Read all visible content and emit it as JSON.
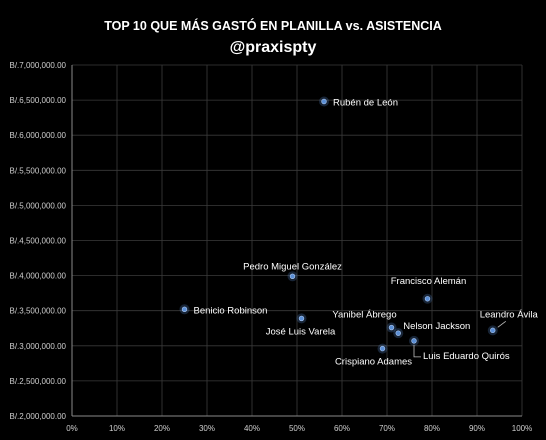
{
  "chart_data": {
    "type": "scatter",
    "title": "TOP 10 QUE MÁS GASTÓ EN PLANILLA vs. ASISTENCIA",
    "subtitle": "@praxispty",
    "xlabel": "",
    "ylabel": "",
    "xlim": [
      0,
      1
    ],
    "ylim": [
      2000000,
      7000000
    ],
    "x_ticks": [
      0,
      0.1,
      0.2,
      0.3,
      0.4,
      0.5,
      0.6,
      0.7,
      0.8,
      0.9,
      1.0
    ],
    "x_tick_labels": [
      "0%",
      "10%",
      "20%",
      "30%",
      "40%",
      "50%",
      "60%",
      "70%",
      "80%",
      "90%",
      "100%"
    ],
    "y_ticks": [
      2000000,
      2500000,
      3000000,
      3500000,
      4000000,
      4500000,
      5000000,
      5500000,
      6000000,
      6500000,
      7000000
    ],
    "y_tick_labels": [
      "B/.2,000,000.00",
      "B/.2,500,000.00",
      "B/.3,000,000.00",
      "B/.3,500,000.00",
      "B/.4,000,000.00",
      "B/.4,500,000.00",
      "B/.5,000,000.00",
      "B/.5,500,000.00",
      "B/.6,000,000.00",
      "B/.6,500,000.00",
      "B/.7,000,000.00"
    ],
    "grid": true,
    "legend": "none",
    "marker_color": "#5b8fd6",
    "points": [
      {
        "label": "Rubén de León",
        "x": 0.56,
        "y": 6480000
      },
      {
        "label": "Pedro Miguel González",
        "x": 0.49,
        "y": 3990000
      },
      {
        "label": "Francisco Alemán",
        "x": 0.79,
        "y": 3670000
      },
      {
        "label": "Benicio Robinson",
        "x": 0.25,
        "y": 3520000
      },
      {
        "label": "Leandro Ávila",
        "x": 0.935,
        "y": 3220000
      },
      {
        "label": "José Luis Varela",
        "x": 0.51,
        "y": 3390000
      },
      {
        "label": "Yanibel Ábrego",
        "x": 0.71,
        "y": 3260000
      },
      {
        "label": "Nelson Jackson",
        "x": 0.725,
        "y": 3180000
      },
      {
        "label": "Luis Eduardo Quirós",
        "x": 0.76,
        "y": 3070000
      },
      {
        "label": "Crispiano Adames",
        "x": 0.69,
        "y": 2960000
      }
    ]
  }
}
